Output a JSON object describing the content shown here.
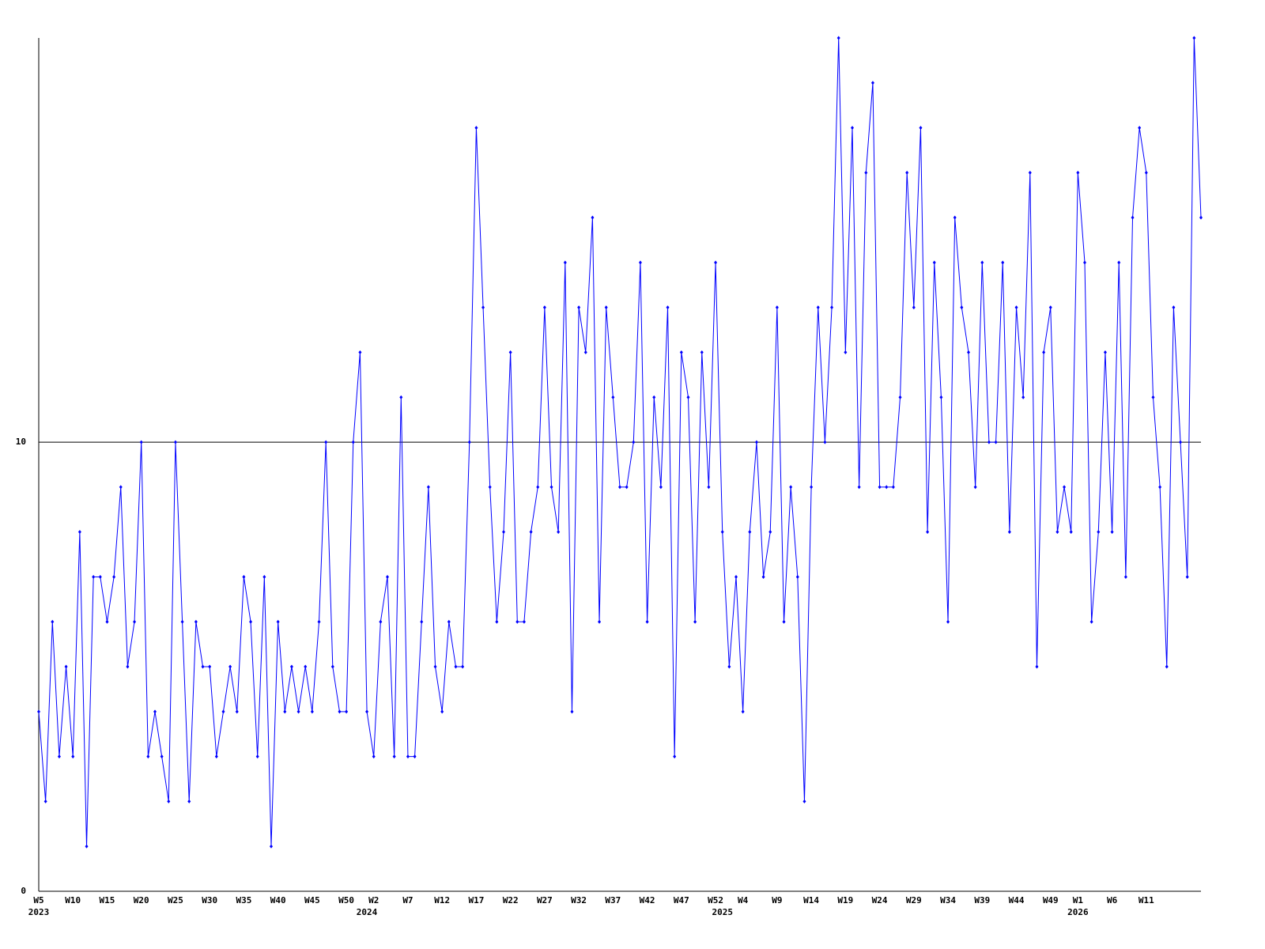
{
  "chart_data": {
    "type": "line",
    "color": "#0000ff",
    "categories": [
      "W5",
      null,
      null,
      null,
      null,
      "W10",
      null,
      null,
      null,
      null,
      "W15",
      null,
      null,
      null,
      null,
      "W20",
      null,
      null,
      null,
      null,
      "W25",
      null,
      null,
      null,
      null,
      "W30",
      null,
      null,
      null,
      null,
      "W35",
      null,
      null,
      null,
      null,
      "W40",
      null,
      null,
      null,
      null,
      "W45",
      null,
      null,
      null,
      null,
      "W50",
      null,
      null,
      null,
      "W2",
      null,
      null,
      null,
      null,
      "W7",
      null,
      null,
      null,
      null,
      "W12",
      null,
      null,
      null,
      null,
      "W17",
      null,
      null,
      null,
      null,
      "W22",
      null,
      null,
      null,
      null,
      "W27",
      null,
      null,
      null,
      null,
      "W32",
      null,
      null,
      null,
      null,
      "W37",
      null,
      null,
      null,
      null,
      "W42",
      null,
      null,
      null,
      null,
      "W47",
      null,
      null,
      null,
      null,
      "W52",
      null,
      null,
      null,
      "W4",
      null,
      null,
      null,
      null,
      "W9",
      null,
      null,
      null,
      null,
      "W14",
      null,
      null,
      null,
      null,
      "W19",
      null,
      null,
      null,
      null,
      "W24",
      null,
      null,
      null,
      null,
      "W29",
      null,
      null,
      null,
      null,
      "W34",
      null,
      null,
      null,
      null,
      "W39",
      null,
      null,
      null,
      null,
      "W44",
      null,
      null,
      null,
      null,
      "W49",
      null,
      null,
      null,
      "W1",
      null,
      null,
      null,
      null,
      "W6",
      null,
      null,
      null,
      null,
      "W11",
      null,
      null,
      null,
      null,
      null,
      null,
      null,
      null
    ],
    "category_years": [
      "2023",
      null,
      null,
      null,
      null,
      null,
      null,
      null,
      null,
      null,
      null,
      null,
      null,
      null,
      null,
      null,
      null,
      null,
      null,
      null,
      null,
      null,
      null,
      null,
      null,
      null,
      null,
      null,
      null,
      null,
      null,
      null,
      null,
      null,
      null,
      null,
      null,
      null,
      null,
      null,
      null,
      null,
      null,
      null,
      null,
      null,
      null,
      null,
      "2024",
      null,
      null,
      null,
      null,
      null,
      null,
      null,
      null,
      null,
      null,
      null,
      null,
      null,
      null,
      null,
      null,
      null,
      null,
      null,
      null,
      null,
      null,
      null,
      null,
      null,
      null,
      null,
      null,
      null,
      null,
      null,
      null,
      null,
      null,
      null,
      null,
      null,
      null,
      null,
      null,
      null,
      null,
      null,
      null,
      null,
      null,
      null,
      null,
      null,
      null,
      null,
      "2025",
      null,
      null,
      null,
      null,
      null,
      null,
      null,
      null,
      null,
      null,
      null,
      null,
      null,
      null,
      null,
      null,
      null,
      null,
      null,
      null,
      null,
      null,
      null,
      null,
      null,
      null,
      null,
      null,
      null,
      null,
      null,
      null,
      null,
      null,
      null,
      null,
      null,
      null,
      null,
      null,
      null,
      null,
      null,
      null,
      null,
      null,
      null,
      null,
      null,
      null,
      null,
      "2026",
      null,
      null,
      null,
      null,
      null,
      null,
      null,
      null,
      null,
      null,
      null,
      null,
      null,
      null,
      null,
      null,
      null,
      null
    ],
    "values": [
      4,
      2,
      6,
      3,
      5,
      3,
      8,
      1,
      7,
      7,
      6,
      7,
      9,
      5,
      6,
      10,
      3,
      4,
      3,
      2,
      10,
      6,
      2,
      6,
      5,
      5,
      3,
      4,
      5,
      4,
      7,
      6,
      3,
      7,
      1,
      6,
      4,
      5,
      4,
      5,
      4,
      6,
      10,
      5,
      4,
      4,
      10,
      12,
      4,
      3,
      6,
      7,
      3,
      11,
      3,
      3,
      6,
      9,
      5,
      4,
      6,
      5,
      5,
      10,
      17,
      13,
      9,
      6,
      8,
      12,
      6,
      6,
      8,
      9,
      13,
      9,
      8,
      14,
      4,
      13,
      12,
      15,
      6,
      13,
      11,
      9,
      9,
      10,
      14,
      6,
      11,
      9,
      13,
      3,
      12,
      11,
      6,
      12,
      9,
      14,
      8,
      5,
      7,
      4,
      8,
      10,
      7,
      8,
      13,
      6,
      9,
      7,
      2,
      9,
      13,
      10,
      13,
      19,
      12,
      17,
      9,
      16,
      18,
      9,
      9,
      9,
      11,
      16,
      13,
      17,
      8,
      14,
      11,
      6,
      15,
      13,
      12,
      9,
      14,
      10,
      10,
      14,
      8,
      13,
      11,
      16,
      5,
      12,
      13,
      8,
      9,
      8,
      16,
      14,
      6,
      8,
      12,
      8,
      14,
      7,
      15,
      17,
      16,
      11,
      9,
      5,
      13,
      10,
      7,
      19,
      15
    ],
    "ylim": [
      0,
      19
    ],
    "yticks": [
      0,
      10
    ],
    "grid": true
  }
}
